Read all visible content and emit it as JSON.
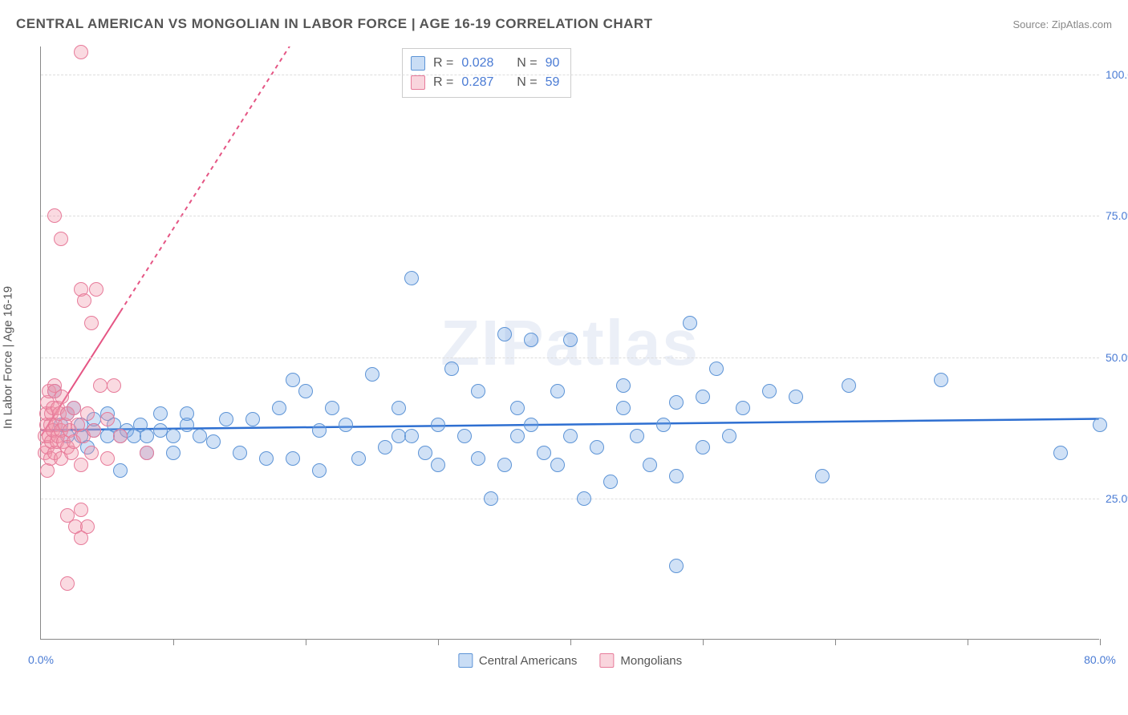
{
  "title": "CENTRAL AMERICAN VS MONGOLIAN IN LABOR FORCE | AGE 16-19 CORRELATION CHART",
  "source_prefix": "Source: ",
  "source_name": "ZipAtlas.com",
  "ylabel": "In Labor Force | Age 16-19",
  "watermark": "ZIPatlas",
  "chart": {
    "type": "scatter",
    "xlim": [
      0,
      80
    ],
    "ylim": [
      0,
      105
    ],
    "ytick_labels": [
      "25.0%",
      "50.0%",
      "75.0%",
      "100.0%"
    ],
    "ytick_values": [
      25,
      50,
      75,
      100
    ],
    "xtick_labels": [
      "0.0%",
      "80.0%"
    ],
    "xtick_values": [
      0,
      80
    ],
    "xtick_minor": [
      10,
      20,
      30,
      40,
      50,
      60,
      70,
      80
    ],
    "grid_color": "#dddddd",
    "background_color": "#ffffff",
    "point_radius": 9,
    "series": [
      {
        "name": "Central Americans",
        "fill": "rgba(120,170,230,0.35)",
        "stroke": "#5d94d6",
        "R": "0.028",
        "N": "90",
        "trend": {
          "y_at_x0": 37,
          "y_at_x80": 39,
          "color": "#2e6fd1",
          "width": 2.5,
          "dash": "none"
        },
        "points": [
          [
            1,
            44
          ],
          [
            1.5,
            38
          ],
          [
            2,
            40
          ],
          [
            2,
            36
          ],
          [
            2.5,
            41
          ],
          [
            3,
            36
          ],
          [
            3,
            38
          ],
          [
            3.5,
            34
          ],
          [
            4,
            37
          ],
          [
            4,
            39
          ],
          [
            5,
            40
          ],
          [
            5,
            36
          ],
          [
            5.5,
            38
          ],
          [
            6,
            36
          ],
          [
            6,
            30
          ],
          [
            6.5,
            37
          ],
          [
            7,
            36
          ],
          [
            7.5,
            38
          ],
          [
            8,
            36
          ],
          [
            8,
            33
          ],
          [
            9,
            37
          ],
          [
            9,
            40
          ],
          [
            10,
            36
          ],
          [
            10,
            33
          ],
          [
            11,
            38
          ],
          [
            11,
            40
          ],
          [
            12,
            36
          ],
          [
            13,
            35
          ],
          [
            14,
            39
          ],
          [
            15,
            33
          ],
          [
            16,
            39
          ],
          [
            17,
            32
          ],
          [
            18,
            41
          ],
          [
            19,
            46
          ],
          [
            19,
            32
          ],
          [
            20,
            44
          ],
          [
            21,
            30
          ],
          [
            21,
            37
          ],
          [
            22,
            41
          ],
          [
            23,
            38
          ],
          [
            24,
            32
          ],
          [
            25,
            47
          ],
          [
            26,
            34
          ],
          [
            27,
            36
          ],
          [
            27,
            41
          ],
          [
            28,
            36
          ],
          [
            28,
            64
          ],
          [
            29,
            33
          ],
          [
            30,
            31
          ],
          [
            30,
            38
          ],
          [
            31,
            48
          ],
          [
            32,
            36
          ],
          [
            33,
            32
          ],
          [
            33,
            44
          ],
          [
            34,
            25
          ],
          [
            35,
            54
          ],
          [
            35,
            31
          ],
          [
            36,
            36
          ],
          [
            36,
            41
          ],
          [
            37,
            38
          ],
          [
            37,
            53
          ],
          [
            38,
            33
          ],
          [
            39,
            31
          ],
          [
            39,
            44
          ],
          [
            40,
            36
          ],
          [
            40,
            53
          ],
          [
            41,
            25
          ],
          [
            42,
            34
          ],
          [
            43,
            28
          ],
          [
            44,
            41
          ],
          [
            44,
            45
          ],
          [
            45,
            36
          ],
          [
            46,
            31
          ],
          [
            47,
            38
          ],
          [
            48,
            42
          ],
          [
            48,
            29
          ],
          [
            48,
            13
          ],
          [
            49,
            56
          ],
          [
            50,
            34
          ],
          [
            50,
            43
          ],
          [
            51,
            48
          ],
          [
            52,
            36
          ],
          [
            53,
            41
          ],
          [
            55,
            44
          ],
          [
            57,
            43
          ],
          [
            59,
            29
          ],
          [
            61,
            45
          ],
          [
            68,
            46
          ],
          [
            77,
            33
          ],
          [
            80,
            38
          ]
        ]
      },
      {
        "name": "Mongolians",
        "fill": "rgba(240,150,170,0.35)",
        "stroke": "#e77b9a",
        "R": "0.287",
        "N": "59",
        "trend": {
          "y_at_x0": 36,
          "y_at_x80": 330,
          "color": "#e55584",
          "width": 2,
          "dash": "5,5",
          "solid_until_x": 6
        },
        "points": [
          [
            0.3,
            33
          ],
          [
            0.3,
            36
          ],
          [
            0.4,
            38
          ],
          [
            0.4,
            40
          ],
          [
            0.5,
            34
          ],
          [
            0.5,
            42
          ],
          [
            0.5,
            30
          ],
          [
            0.6,
            36
          ],
          [
            0.6,
            44
          ],
          [
            0.7,
            38
          ],
          [
            0.7,
            32
          ],
          [
            0.8,
            40
          ],
          [
            0.8,
            35
          ],
          [
            0.9,
            37
          ],
          [
            0.9,
            41
          ],
          [
            1,
            33
          ],
          [
            1,
            45
          ],
          [
            1,
            44
          ],
          [
            1.1,
            38
          ],
          [
            1,
            75
          ],
          [
            1.2,
            35
          ],
          [
            1.3,
            41
          ],
          [
            1.3,
            36
          ],
          [
            1.4,
            40
          ],
          [
            1.5,
            37
          ],
          [
            1.5,
            32
          ],
          [
            1.6,
            43
          ],
          [
            1.7,
            35
          ],
          [
            1.8,
            38
          ],
          [
            1.5,
            71
          ],
          [
            2,
            34
          ],
          [
            2,
            40
          ],
          [
            2,
            22
          ],
          [
            2.2,
            37
          ],
          [
            2.3,
            33
          ],
          [
            2.5,
            41
          ],
          [
            2.5,
            35
          ],
          [
            2.6,
            20
          ],
          [
            2.8,
            38
          ],
          [
            3,
            62
          ],
          [
            3,
            31
          ],
          [
            3,
            23
          ],
          [
            3.2,
            36
          ],
          [
            3.3,
            60
          ],
          [
            3.5,
            40
          ],
          [
            3.5,
            20
          ],
          [
            3.8,
            33
          ],
          [
            3.8,
            56
          ],
          [
            4,
            37
          ],
          [
            3,
            104
          ],
          [
            4.2,
            62
          ],
          [
            4.5,
            45
          ],
          [
            5,
            32
          ],
          [
            5,
            39
          ],
          [
            5.5,
            45
          ],
          [
            6,
            36
          ],
          [
            2,
            10
          ],
          [
            3,
            18
          ],
          [
            8,
            33
          ]
        ]
      }
    ]
  },
  "stats_legend": {
    "rows": [
      {
        "swatch": "a",
        "r_label": "R =",
        "r_value": "0.028",
        "n_label": "N =",
        "n_value": "90"
      },
      {
        "swatch": "b",
        "r_label": "R =",
        "r_value": "0.287",
        "n_label": "N =",
        "n_value": "59"
      }
    ]
  },
  "bottom_legend": [
    {
      "swatch": "a",
      "label": "Central Americans"
    },
    {
      "swatch": "b",
      "label": "Mongolians"
    }
  ]
}
